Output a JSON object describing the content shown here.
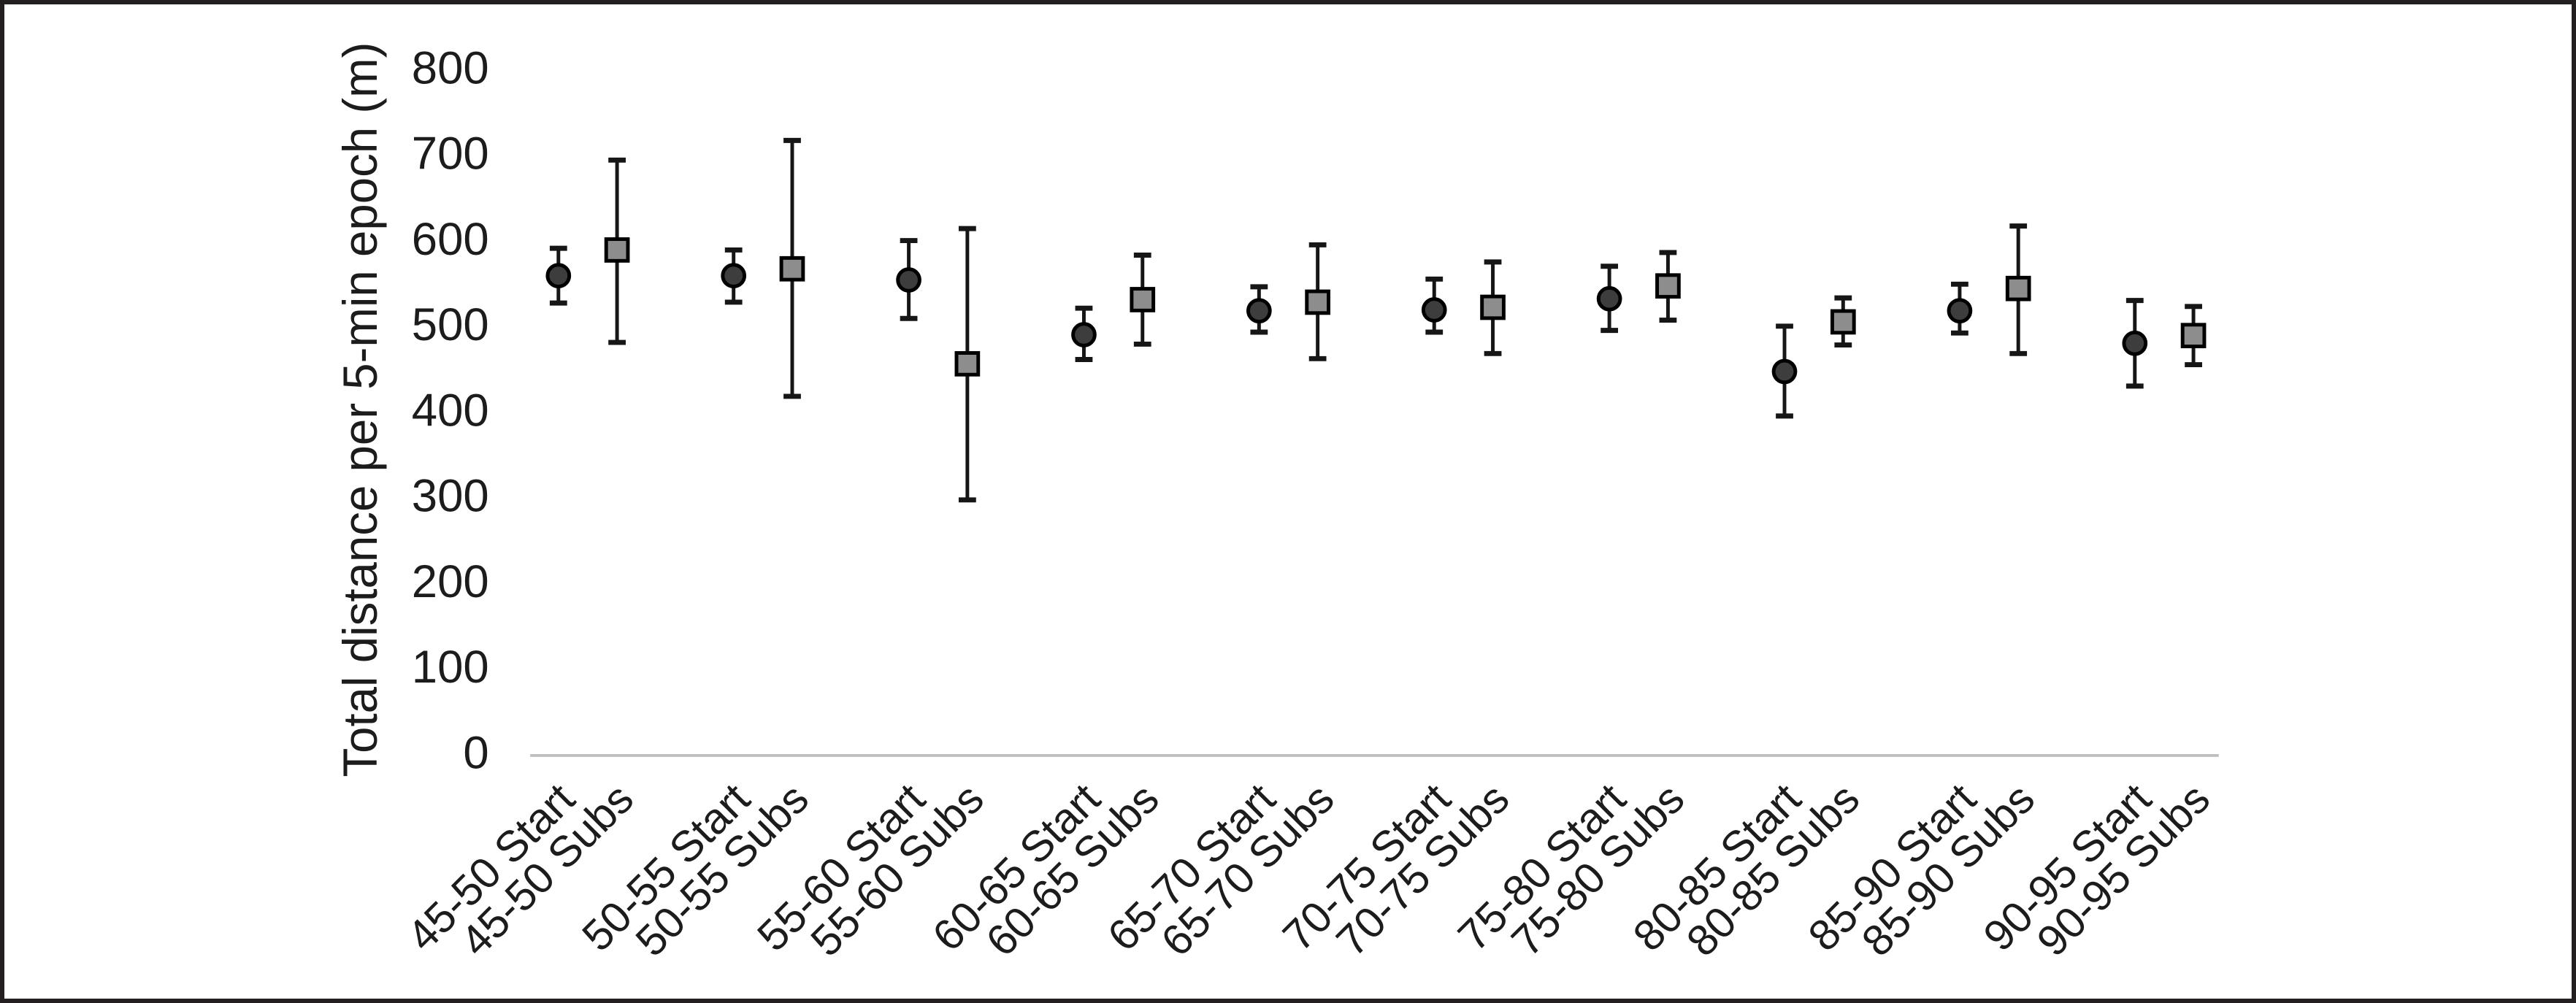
{
  "figure": {
    "border_color": "#231f20",
    "background_color": "#ffffff"
  },
  "chart_data": {
    "type": "scatter",
    "subtype": "mean-with-error-bars",
    "title": "",
    "xlabel": "",
    "ylabel": "Total distance per 5-min epoch (m)",
    "ylim": [
      0,
      800
    ],
    "yticks": [
      0,
      100,
      200,
      300,
      400,
      500,
      600,
      700,
      800
    ],
    "grid": false,
    "legend": "none",
    "x_tick_rotation_deg": 45,
    "colors": {
      "text": "#1c1c1c",
      "axis_line": "#bfbfbf",
      "error_bar": "#161616",
      "marker_stroke": "#000000",
      "start_fill": "#3d3d3d",
      "subs_fill": "#8d8d8d"
    },
    "groups": [
      {
        "name": "Start",
        "marker": "circle",
        "fill": "#3d3d3d"
      },
      {
        "name": "Subs",
        "marker": "square",
        "fill": "#8d8d8d"
      }
    ],
    "points": [
      {
        "label": "45-50 Start",
        "group": "Start",
        "mean": 556,
        "lo": 524,
        "hi": 588
      },
      {
        "label": "45-50 Subs",
        "group": "Subs",
        "mean": 586,
        "lo": 478,
        "hi": 691
      },
      {
        "label": "50-55 Start",
        "group": "Start",
        "mean": 556,
        "lo": 525,
        "hi": 586
      },
      {
        "label": "50-55 Subs",
        "group": "Subs",
        "mean": 564,
        "lo": 415,
        "hi": 714
      },
      {
        "label": "55-60 Start",
        "group": "Start",
        "mean": 551,
        "lo": 506,
        "hi": 597
      },
      {
        "label": "55-60 Subs",
        "group": "Subs",
        "mean": 453,
        "lo": 294,
        "hi": 611
      },
      {
        "label": "60-65 Start",
        "group": "Start",
        "mean": 487,
        "lo": 458,
        "hi": 518
      },
      {
        "label": "60-65 Subs",
        "group": "Subs",
        "mean": 528,
        "lo": 476,
        "hi": 580
      },
      {
        "label": "65-70 Start",
        "group": "Start",
        "mean": 515,
        "lo": 490,
        "hi": 543
      },
      {
        "label": "65-70 Subs",
        "group": "Subs",
        "mean": 525,
        "lo": 459,
        "hi": 592
      },
      {
        "label": "70-75 Start",
        "group": "Start",
        "mean": 516,
        "lo": 490,
        "hi": 552
      },
      {
        "label": "70-75 Subs",
        "group": "Subs",
        "mean": 519,
        "lo": 465,
        "hi": 572
      },
      {
        "label": "75-80 Start",
        "group": "Start",
        "mean": 529,
        "lo": 492,
        "hi": 567
      },
      {
        "label": "75-80 Subs",
        "group": "Subs",
        "mean": 544,
        "lo": 504,
        "hi": 583
      },
      {
        "label": "80-85 Start",
        "group": "Start",
        "mean": 444,
        "lo": 392,
        "hi": 497
      },
      {
        "label": "80-85 Subs",
        "group": "Subs",
        "mean": 502,
        "lo": 475,
        "hi": 530
      },
      {
        "label": "85-90 Start",
        "group": "Start",
        "mean": 515,
        "lo": 489,
        "hi": 546
      },
      {
        "label": "85-90 Subs",
        "group": "Subs",
        "mean": 541,
        "lo": 465,
        "hi": 614
      },
      {
        "label": "90-95 Start",
        "group": "Start",
        "mean": 477,
        "lo": 427,
        "hi": 527
      },
      {
        "label": "90-95 Subs",
        "group": "Subs",
        "mean": 486,
        "lo": 452,
        "hi": 520
      }
    ]
  }
}
